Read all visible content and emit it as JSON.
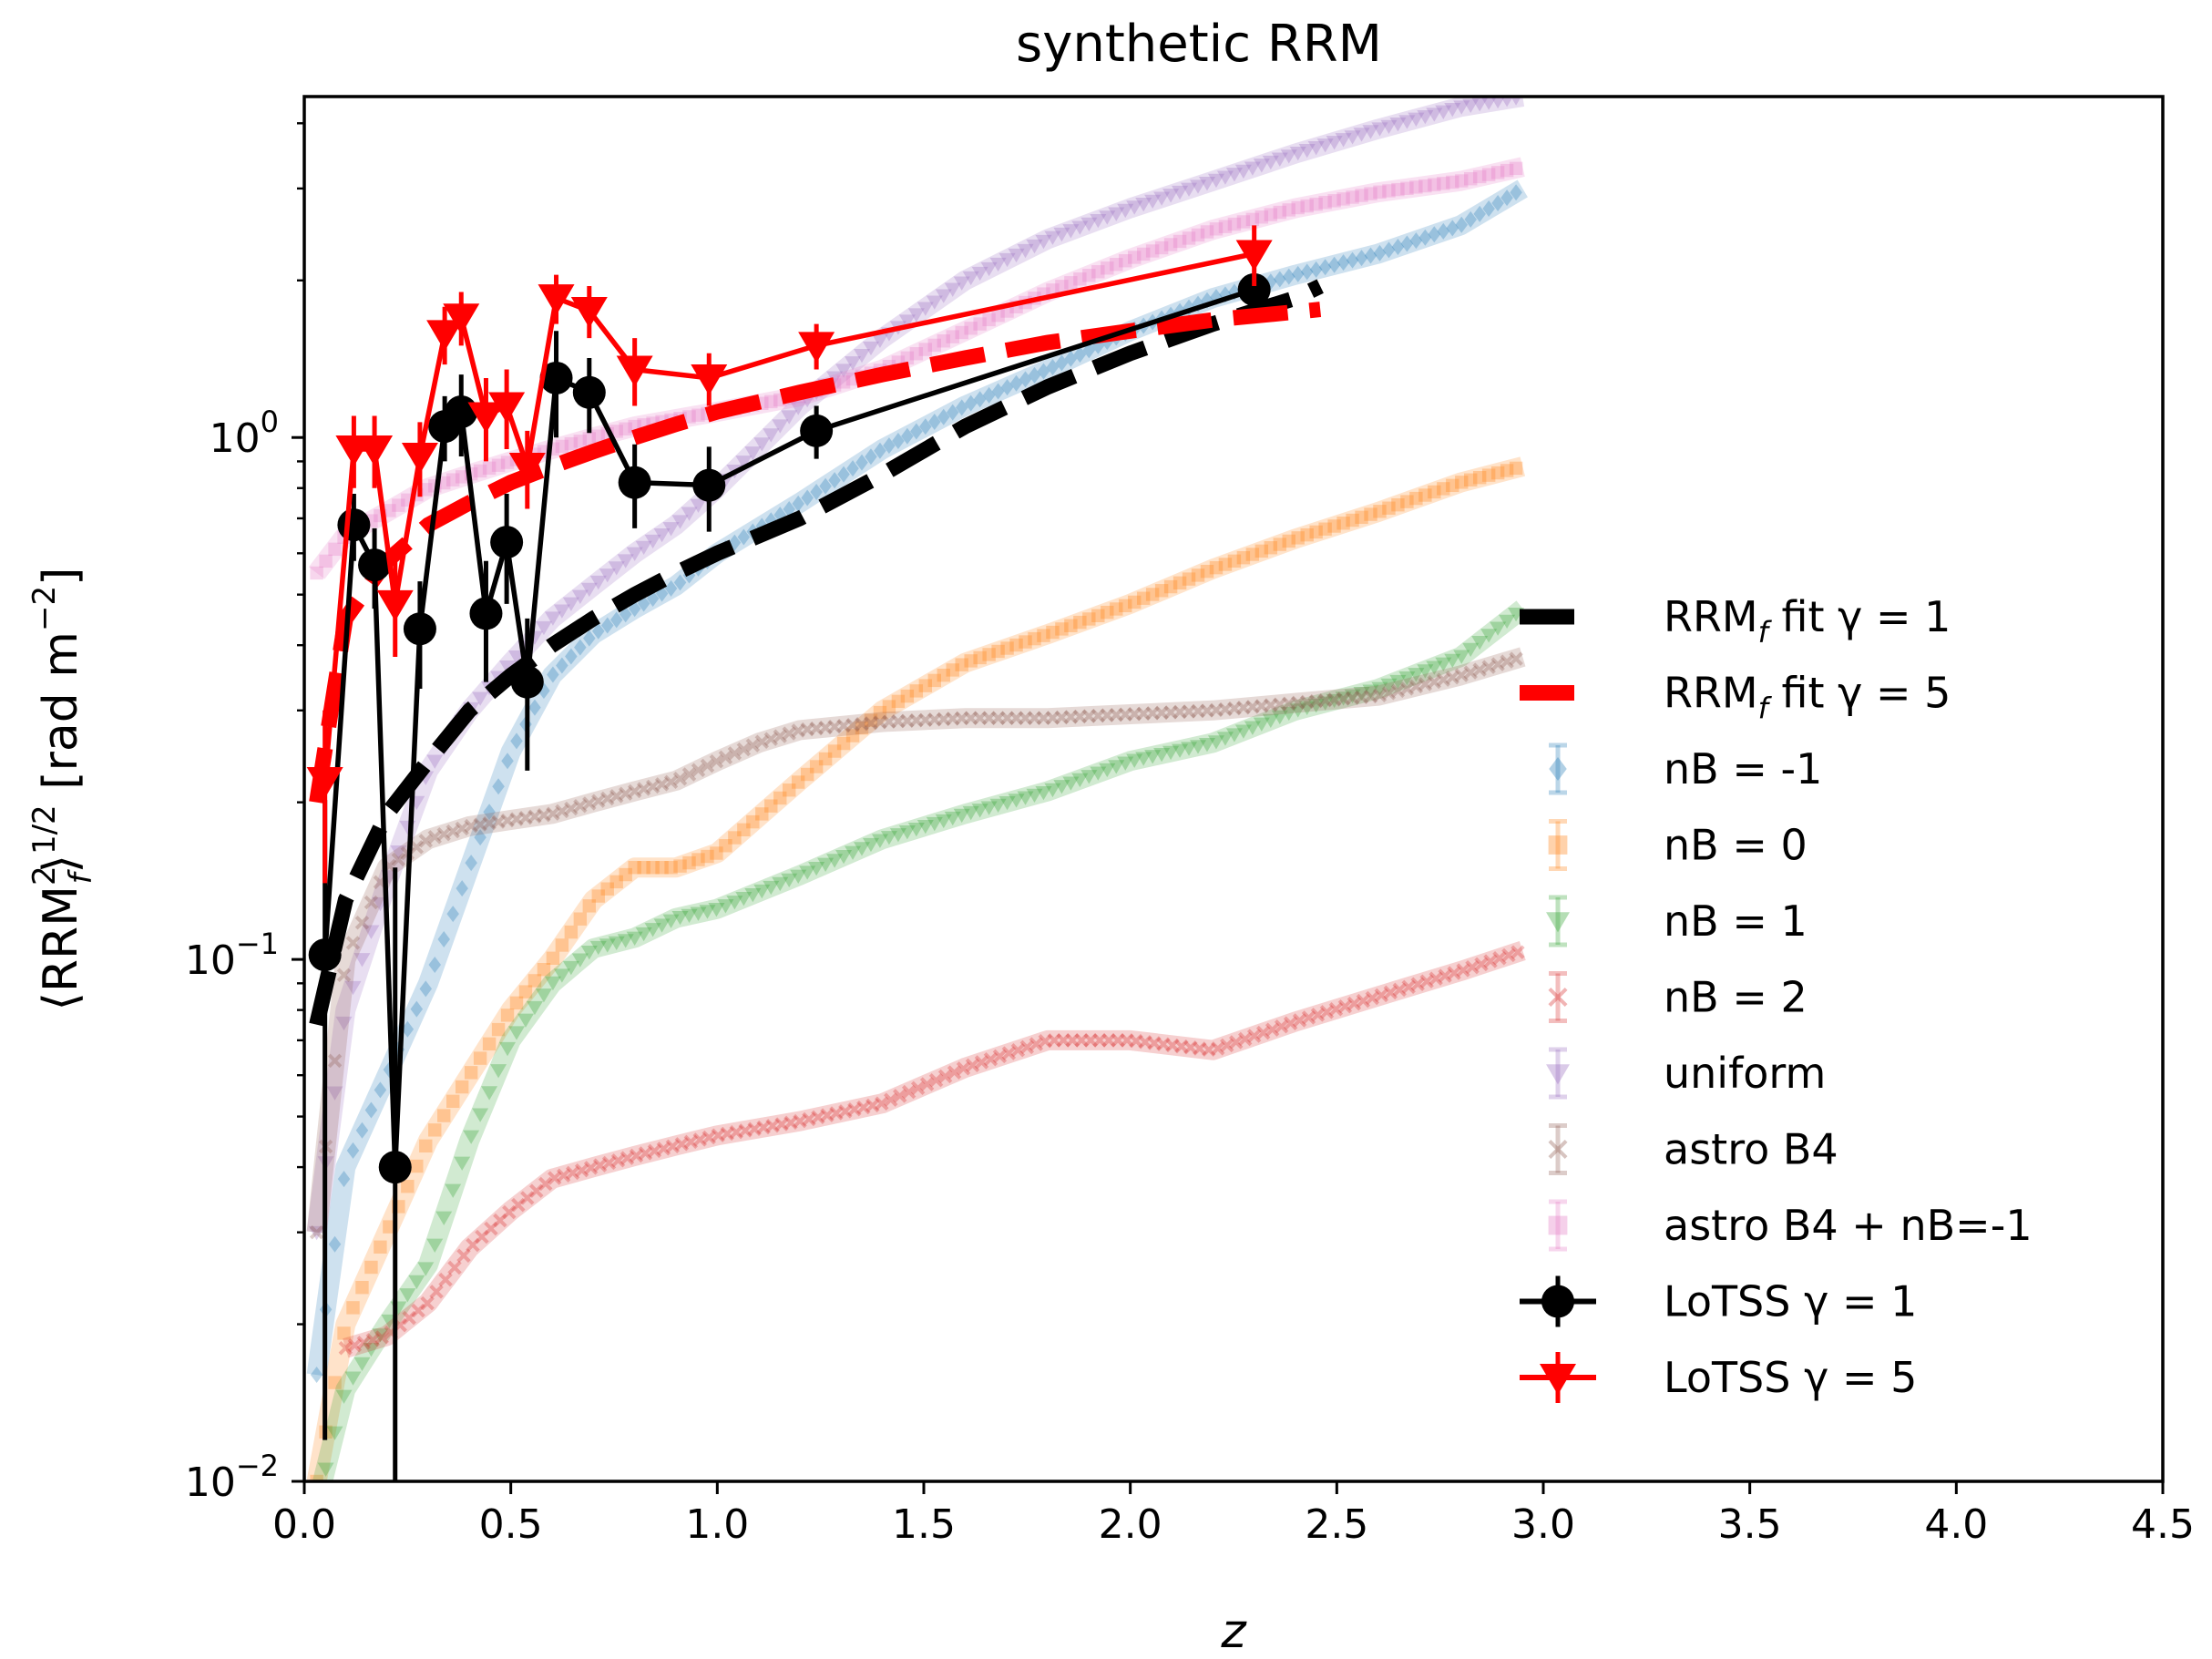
{
  "chart_data": {
    "type": "line",
    "title": "synthetic RRM",
    "xlabel": "z",
    "ylabel": "⟨RRM_f²⟩^1/2 [rad m⁻²]",
    "ylabel_parts": {
      "open": "⟨RRM",
      "sup": "2",
      "sub": "f",
      "close": "⟩",
      "exp": "1/2",
      "unit_open": " [rad m",
      "unit_exp": "−2",
      "unit_close": "]"
    },
    "xlim": [
      0,
      4.5
    ],
    "ylim": [
      0.01,
      4.5
    ],
    "yscale": "log",
    "x_ticks": [
      "0.0",
      "0.5",
      "1.0",
      "1.5",
      "2.0",
      "2.5",
      "3.0",
      "3.5",
      "4.0",
      "4.5"
    ],
    "x_tick_values": [
      0,
      0.5,
      1.0,
      1.5,
      2.0,
      2.5,
      3.0,
      3.5,
      4.0,
      4.5
    ],
    "y_ticks": [
      {
        "value": 0.01,
        "base": "10",
        "exp": "−2"
      },
      {
        "value": 0.1,
        "base": "10",
        "exp": "−1"
      },
      {
        "value": 1,
        "base": "10",
        "exp": "0"
      }
    ],
    "series": [
      {
        "name": "nB = -1",
        "label": "nB = -1",
        "kind": "sim",
        "marker": "diamond",
        "color": "#1f77b4",
        "x": [
          0.03,
          0.1,
          0.2,
          0.3,
          0.4,
          0.5,
          0.6,
          0.7,
          0.8,
          0.9,
          1.0,
          1.2,
          1.4,
          1.6,
          1.8,
          2.0,
          2.2,
          2.4,
          2.6,
          2.8,
          2.95
        ],
        "y": [
          0.016,
          0.04,
          0.06,
          0.09,
          0.15,
          0.25,
          0.35,
          0.42,
          0.47,
          0.52,
          0.6,
          0.75,
          0.95,
          1.15,
          1.35,
          1.6,
          1.85,
          2.05,
          2.25,
          2.55,
          3.0
        ]
      },
      {
        "name": "nB = 0",
        "label": "nB = 0",
        "kind": "sim",
        "marker": "square",
        "color": "#ff7f0e",
        "x": [
          0.03,
          0.1,
          0.2,
          0.3,
          0.4,
          0.5,
          0.6,
          0.7,
          0.8,
          0.9,
          1.0,
          1.2,
          1.4,
          1.6,
          1.8,
          2.0,
          2.2,
          2.4,
          2.6,
          2.8,
          2.95
        ],
        "y": [
          0.01,
          0.02,
          0.03,
          0.045,
          0.06,
          0.08,
          0.1,
          0.13,
          0.15,
          0.15,
          0.16,
          0.22,
          0.3,
          0.37,
          0.42,
          0.48,
          0.56,
          0.64,
          0.72,
          0.82,
          0.88
        ]
      },
      {
        "name": "nB = 1",
        "label": "nB = 1",
        "kind": "sim",
        "marker": "triangle-down",
        "color": "#2ca02c",
        "x": [
          0.03,
          0.1,
          0.2,
          0.3,
          0.4,
          0.5,
          0.6,
          0.7,
          0.8,
          0.9,
          1.0,
          1.2,
          1.4,
          1.6,
          1.8,
          2.0,
          2.2,
          2.4,
          2.6,
          2.8,
          2.95
        ],
        "y": [
          0.009,
          0.015,
          0.02,
          0.026,
          0.045,
          0.07,
          0.09,
          0.105,
          0.11,
          0.12,
          0.125,
          0.145,
          0.17,
          0.19,
          0.21,
          0.24,
          0.26,
          0.3,
          0.33,
          0.38,
          0.47
        ]
      },
      {
        "name": "nB = 2",
        "label": "nB = 2",
        "kind": "sim",
        "marker": "x",
        "color": "#d62728",
        "x": [
          0.1,
          0.2,
          0.3,
          0.4,
          0.5,
          0.6,
          0.7,
          0.8,
          0.9,
          1.0,
          1.2,
          1.4,
          1.6,
          1.8,
          2.0,
          2.2,
          2.4,
          2.6,
          2.8,
          2.95
        ],
        "y": [
          0.018,
          0.019,
          0.022,
          0.028,
          0.033,
          0.038,
          0.04,
          0.042,
          0.044,
          0.046,
          0.049,
          0.053,
          0.062,
          0.07,
          0.07,
          0.067,
          0.076,
          0.085,
          0.095,
          0.104
        ]
      },
      {
        "name": "uniform",
        "label": "uniform",
        "kind": "sim",
        "marker": "triangle-down",
        "color": "#9467bd",
        "x": [
          0.03,
          0.1,
          0.2,
          0.3,
          0.4,
          0.5,
          0.6,
          0.7,
          0.8,
          0.9,
          1.0,
          1.2,
          1.4,
          1.6,
          1.8,
          2.0,
          2.2,
          2.4,
          2.6,
          2.8,
          2.95
        ],
        "y": [
          0.03,
          0.08,
          0.14,
          0.23,
          0.3,
          0.37,
          0.45,
          0.52,
          0.6,
          0.68,
          0.8,
          1.15,
          1.55,
          2.0,
          2.4,
          2.75,
          3.1,
          3.5,
          3.9,
          4.3,
          4.5
        ]
      },
      {
        "name": "astro B4",
        "label": "astro B4",
        "kind": "sim",
        "marker": "x",
        "color": "#8c564b",
        "x": [
          0.03,
          0.1,
          0.2,
          0.3,
          0.4,
          0.5,
          0.6,
          0.7,
          0.8,
          0.9,
          1.0,
          1.1,
          1.2,
          1.4,
          1.6,
          1.8,
          2.0,
          2.2,
          2.4,
          2.6,
          2.8,
          2.95
        ],
        "y": [
          0.03,
          0.1,
          0.15,
          0.17,
          0.18,
          0.185,
          0.19,
          0.2,
          0.21,
          0.22,
          0.24,
          0.26,
          0.275,
          0.285,
          0.29,
          0.29,
          0.295,
          0.3,
          0.31,
          0.32,
          0.35,
          0.38
        ]
      },
      {
        "name": "astro B4 + nB=-1",
        "label": "astro B4 + nB=-1",
        "kind": "sim",
        "marker": "square",
        "color": "#e377c2",
        "x": [
          0.03,
          0.1,
          0.2,
          0.3,
          0.4,
          0.5,
          0.6,
          0.7,
          0.8,
          1.0,
          1.2,
          1.4,
          1.6,
          1.8,
          2.0,
          2.2,
          2.4,
          2.6,
          2.8,
          2.95
        ],
        "y": [
          0.55,
          0.65,
          0.72,
          0.8,
          0.85,
          0.9,
          0.95,
          1.0,
          1.05,
          1.12,
          1.2,
          1.35,
          1.6,
          1.9,
          2.2,
          2.5,
          2.75,
          2.95,
          3.1,
          3.3
        ]
      },
      {
        "name": "RRM_f fit γ = 1",
        "label_main": "RRM",
        "label_sub": "f",
        "label_rest": " fit γ = 1",
        "kind": "fit",
        "color": "#000000",
        "x": [
          0.03,
          0.1,
          0.2,
          0.3,
          0.4,
          0.5,
          0.6,
          0.7,
          0.8,
          0.9,
          1.0,
          1.2,
          1.4,
          1.6,
          1.8,
          2.0,
          2.2,
          2.4,
          2.46
        ],
        "y": [
          0.075,
          0.13,
          0.19,
          0.24,
          0.3,
          0.35,
          0.4,
          0.45,
          0.5,
          0.55,
          0.6,
          0.7,
          0.85,
          1.05,
          1.25,
          1.45,
          1.65,
          1.85,
          1.95
        ]
      },
      {
        "name": "RRM_f fit γ = 5",
        "label_main": "RRM",
        "label_sub": "f",
        "label_rest": " fit γ = 5",
        "kind": "fit",
        "color": "#ff0000",
        "x": [
          0.03,
          0.1,
          0.2,
          0.3,
          0.4,
          0.5,
          0.6,
          0.7,
          0.8,
          0.9,
          1.0,
          1.2,
          1.4,
          1.6,
          1.8,
          2.0,
          2.2,
          2.4,
          2.46
        ],
        "y": [
          0.2,
          0.45,
          0.58,
          0.68,
          0.75,
          0.82,
          0.88,
          0.94,
          1.0,
          1.06,
          1.12,
          1.22,
          1.32,
          1.42,
          1.52,
          1.6,
          1.68,
          1.74,
          1.76
        ]
      },
      {
        "name": "LoTSS γ = 1",
        "label_main": "LoTSS ",
        "label_rest": "γ = 1",
        "kind": "obs",
        "marker": "circle",
        "color": "#000000",
        "x": [
          0.05,
          0.12,
          0.17,
          0.22,
          0.28,
          0.34,
          0.38,
          0.44,
          0.49,
          0.54,
          0.61,
          0.69,
          0.8,
          0.98,
          1.24,
          2.3
        ],
        "y": [
          0.102,
          0.68,
          0.57,
          0.04,
          0.43,
          1.05,
          1.12,
          0.46,
          0.63,
          0.34,
          1.3,
          1.22,
          0.82,
          0.81,
          1.03,
          1.92
        ],
        "yerr_low": [
          0.09,
          0.1,
          0.1,
          0.035,
          0.1,
          0.15,
          0.2,
          0.12,
          0.15,
          0.11,
          0.3,
          0.2,
          0.15,
          0.15,
          0.12,
          0.1
        ],
        "yerr_high": [
          0.1,
          0.1,
          0.1,
          0.11,
          0.1,
          0.15,
          0.2,
          0.12,
          0.15,
          0.11,
          0.3,
          0.2,
          0.15,
          0.15,
          0.12,
          0.1
        ]
      },
      {
        "name": "LoTSS γ = 5",
        "label_main": "LoTSS ",
        "label_rest": "γ = 5",
        "kind": "obs",
        "marker": "triangle-down",
        "color": "#ff0000",
        "x": [
          0.05,
          0.12,
          0.17,
          0.22,
          0.28,
          0.34,
          0.38,
          0.44,
          0.49,
          0.54,
          0.61,
          0.69,
          0.8,
          0.98,
          1.24,
          2.3
        ],
        "y": [
          0.22,
          0.95,
          0.95,
          0.48,
          0.92,
          1.58,
          1.7,
          1.1,
          1.15,
          0.88,
          1.85,
          1.75,
          1.35,
          1.3,
          1.5,
          2.25
        ],
        "yerr_low": [
          0.08,
          0.15,
          0.15,
          0.1,
          0.15,
          0.2,
          0.2,
          0.2,
          0.2,
          0.15,
          0.2,
          0.2,
          0.2,
          0.15,
          0.15,
          0.3
        ],
        "yerr_high": [
          0.08,
          0.15,
          0.15,
          0.1,
          0.15,
          0.2,
          0.2,
          0.2,
          0.2,
          0.15,
          0.2,
          0.2,
          0.2,
          0.15,
          0.15,
          0.3
        ]
      }
    ],
    "legend_order": [
      "RRM_f fit γ = 1",
      "RRM_f fit γ = 5",
      "nB = -1",
      "nB = 0",
      "nB = 1",
      "nB = 2",
      "uniform",
      "astro B4",
      "astro B4 + nB=-1",
      "LoTSS γ = 1",
      "LoTSS γ = 5"
    ],
    "legend_position": "center-right"
  }
}
